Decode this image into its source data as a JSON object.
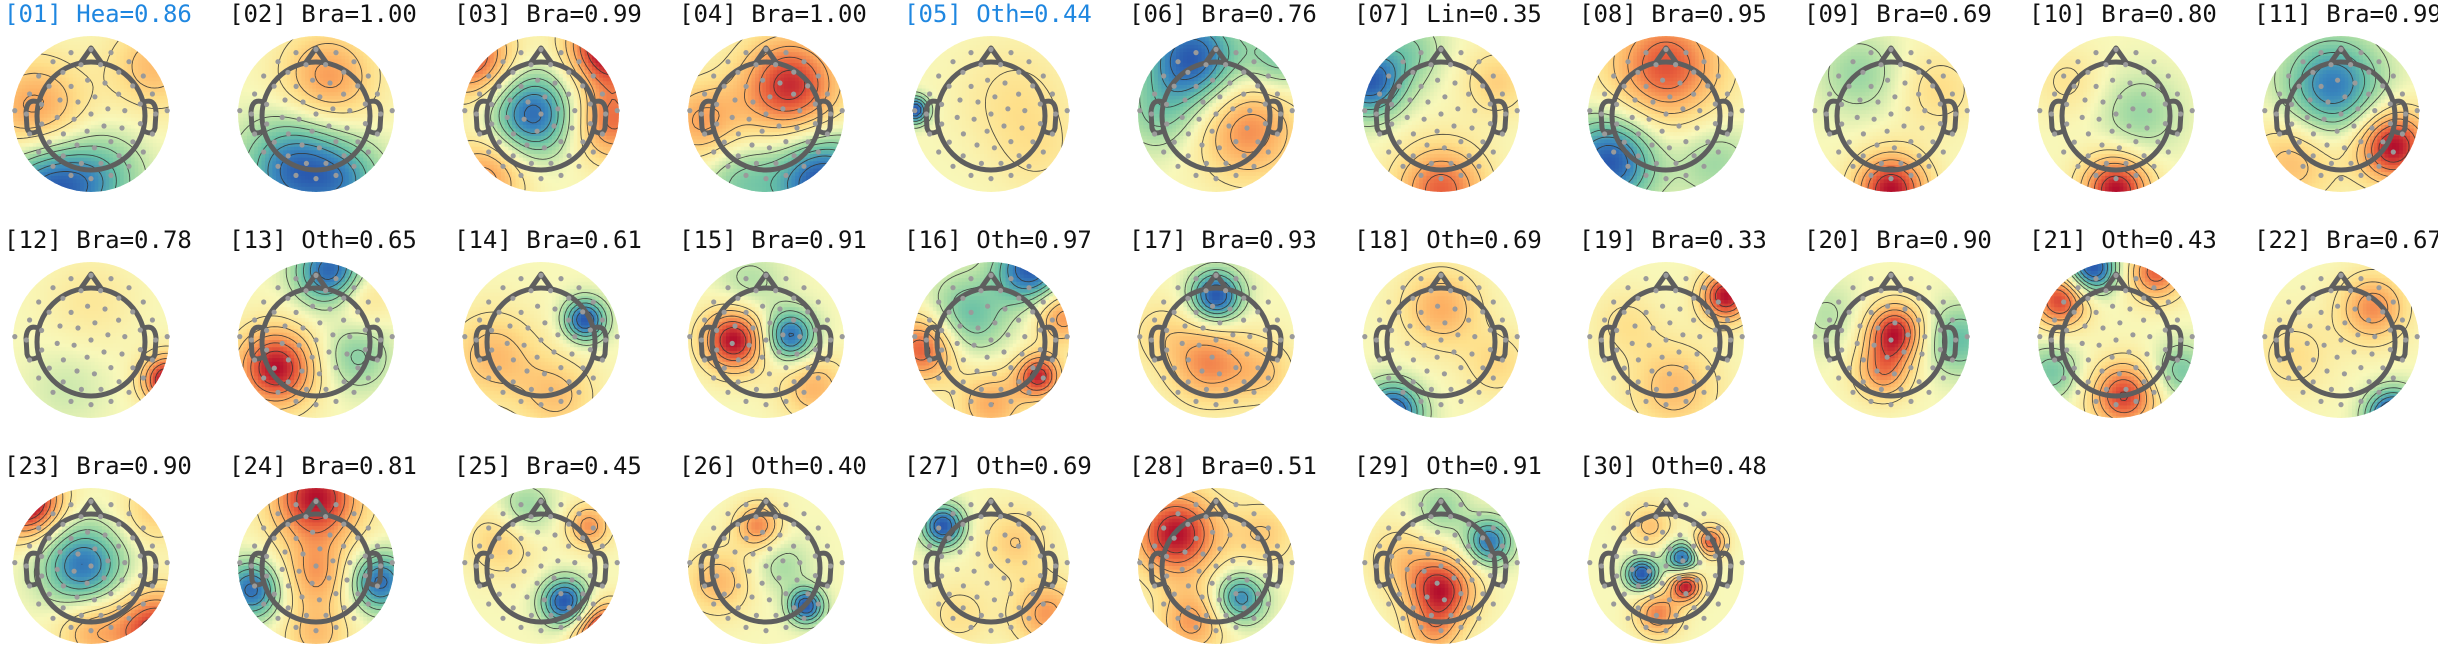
{
  "colors": {
    "normal": "#111111",
    "flagged": "#1f87e0",
    "head": "#5e5e5e",
    "sensor": "#9a9a9a",
    "contour": "#333333"
  },
  "components": [
    {
      "label": "[01] Hea=0.86",
      "flagged": true,
      "blobs": [
        [
          -0.7,
          0.05,
          0.6,
          0.45
        ],
        [
          0.8,
          0.6,
          0.45,
          0.4
        ],
        [
          -0.55,
          -0.95,
          -0.95,
          0.42
        ],
        [
          0.1,
          -0.8,
          -0.5,
          0.4
        ]
      ]
    },
    {
      "label": "[02] Bra=1.00",
      "flagged": false,
      "blobs": [
        [
          0.15,
          0.45,
          0.6,
          0.42
        ],
        [
          -0.25,
          -0.7,
          -0.95,
          0.45
        ],
        [
          0.4,
          -0.85,
          -0.5,
          0.35
        ]
      ]
    },
    {
      "label": "[03] Bra=0.99",
      "flagged": false,
      "blobs": [
        [
          -0.1,
          0.0,
          -0.8,
          0.35
        ],
        [
          0.85,
          0.85,
          1.0,
          0.35
        ],
        [
          -0.85,
          0.7,
          0.7,
          0.35
        ],
        [
          0.9,
          -0.1,
          0.6,
          0.35
        ],
        [
          -0.7,
          -0.8,
          0.5,
          0.35
        ]
      ]
    },
    {
      "label": "[04] Bra=1.00",
      "flagged": false,
      "blobs": [
        [
          0.3,
          0.35,
          0.7,
          0.45
        ],
        [
          -0.8,
          -0.1,
          0.4,
          0.35
        ],
        [
          0.7,
          -0.85,
          -0.8,
          0.4
        ],
        [
          -0.3,
          -0.85,
          -0.3,
          0.35
        ]
      ]
    },
    {
      "label": "[05] Oth=0.44",
      "flagged": true,
      "blobs": [
        [
          -0.95,
          0.05,
          -1.0,
          0.12
        ],
        [
          0.3,
          0.2,
          0.2,
          0.5
        ],
        [
          0.6,
          -0.5,
          0.15,
          0.4
        ]
      ]
    },
    {
      "label": "[06] Bra=0.76",
      "flagged": false,
      "blobs": [
        [
          -0.3,
          0.7,
          -0.9,
          0.4
        ],
        [
          0.4,
          -0.2,
          0.55,
          0.45
        ],
        [
          -0.7,
          0.0,
          -0.3,
          0.35
        ],
        [
          0.8,
          0.7,
          -0.4,
          0.3
        ]
      ]
    },
    {
      "label": "[07] Lin=0.35",
      "flagged": false,
      "blobs": [
        [
          -0.9,
          0.4,
          -0.9,
          0.3
        ],
        [
          0.0,
          -0.95,
          0.7,
          0.4
        ],
        [
          -0.4,
          0.8,
          -0.3,
          0.3
        ],
        [
          0.7,
          0.4,
          0.3,
          0.3
        ]
      ]
    },
    {
      "label": "[08] Bra=0.95",
      "flagged": false,
      "blobs": [
        [
          0.0,
          0.6,
          0.55,
          0.5
        ],
        [
          -0.7,
          -0.6,
          -0.7,
          0.38
        ],
        [
          0.6,
          -0.6,
          -0.2,
          0.35
        ]
      ]
    },
    {
      "label": "[09] Bra=0.69",
      "flagged": false,
      "blobs": [
        [
          0.0,
          -0.95,
          1.0,
          0.32
        ],
        [
          -0.4,
          0.5,
          -0.3,
          0.35
        ],
        [
          0.6,
          0.3,
          0.25,
          0.35
        ]
      ]
    },
    {
      "label": "[10] Bra=0.80",
      "flagged": false,
      "blobs": [
        [
          0.0,
          -0.95,
          1.0,
          0.3
        ],
        [
          0.3,
          0.0,
          -0.3,
          0.35
        ],
        [
          -0.6,
          0.4,
          0.2,
          0.3
        ]
      ]
    },
    {
      "label": "[11] Bra=0.99",
      "flagged": false,
      "blobs": [
        [
          -0.1,
          0.35,
          -0.8,
          0.42
        ],
        [
          0.65,
          -0.4,
          1.0,
          0.32
        ],
        [
          -0.6,
          -0.6,
          0.4,
          0.4
        ]
      ]
    },
    {
      "label": "[12] Bra=0.78",
      "flagged": false,
      "blobs": [
        [
          0.95,
          -0.5,
          0.95,
          0.22
        ],
        [
          0.0,
          0.5,
          0.15,
          0.4
        ],
        [
          -0.3,
          -0.6,
          -0.12,
          0.35
        ]
      ]
    },
    {
      "label": "[13] Oth=0.65",
      "flagged": false,
      "blobs": [
        [
          -0.5,
          -0.35,
          0.8,
          0.35
        ],
        [
          0.2,
          0.85,
          -0.85,
          0.3
        ],
        [
          0.5,
          -0.2,
          -0.3,
          0.3
        ],
        [
          0.5,
          0.6,
          0.3,
          0.3
        ]
      ]
    },
    {
      "label": "[14] Bra=0.61",
      "flagged": false,
      "blobs": [
        [
          0.55,
          0.25,
          -0.95,
          0.18
        ],
        [
          -0.6,
          -0.2,
          0.4,
          0.4
        ],
        [
          0.2,
          -0.7,
          0.35,
          0.35
        ]
      ]
    },
    {
      "label": "[15] Bra=0.91",
      "flagged": false,
      "blobs": [
        [
          -0.4,
          0.0,
          0.9,
          0.28
        ],
        [
          0.3,
          0.05,
          -0.8,
          0.22
        ],
        [
          0.6,
          -0.6,
          0.4,
          0.3
        ],
        [
          -0.2,
          0.7,
          -0.2,
          0.3
        ]
      ]
    },
    {
      "label": "[16] Oth=0.97",
      "flagged": false,
      "blobs": [
        [
          0.5,
          0.9,
          -1.0,
          0.3
        ],
        [
          -0.3,
          0.3,
          -0.5,
          0.35
        ],
        [
          0.6,
          -0.45,
          0.9,
          0.2
        ],
        [
          -0.85,
          -0.1,
          0.8,
          0.3
        ],
        [
          0.0,
          -0.8,
          0.5,
          0.3
        ],
        [
          0.9,
          0.3,
          0.6,
          0.25
        ]
      ]
    },
    {
      "label": "[17] Bra=0.93",
      "flagged": false,
      "blobs": [
        [
          0.0,
          0.55,
          -0.95,
          0.22
        ],
        [
          -0.1,
          -0.3,
          0.55,
          0.35
        ],
        [
          0.6,
          -0.4,
          0.3,
          0.3
        ],
        [
          -0.7,
          0.1,
          0.2,
          0.3
        ]
      ]
    },
    {
      "label": "[18] Oth=0.69",
      "flagged": false,
      "blobs": [
        [
          -0.6,
          -0.9,
          -0.95,
          0.25
        ],
        [
          0.0,
          0.4,
          0.45,
          0.35
        ],
        [
          0.7,
          -0.3,
          0.25,
          0.3
        ]
      ]
    },
    {
      "label": "[19] Bra=0.33",
      "flagged": false,
      "blobs": [
        [
          0.75,
          0.55,
          0.95,
          0.22
        ],
        [
          0.1,
          -0.6,
          0.4,
          0.4
        ],
        [
          -0.5,
          0.2,
          0.2,
          0.3
        ]
      ]
    },
    {
      "label": "[20] Bra=0.90",
      "flagged": false,
      "blobs": [
        [
          0.05,
          0.1,
          0.95,
          0.25
        ],
        [
          -0.1,
          -0.4,
          0.6,
          0.25
        ],
        [
          0.85,
          0.0,
          -0.5,
          0.3
        ],
        [
          -0.8,
          0.3,
          -0.2,
          0.3
        ]
      ]
    },
    {
      "label": "[21] Oth=0.43",
      "flagged": false,
      "blobs": [
        [
          -0.3,
          0.9,
          -1.0,
          0.22
        ],
        [
          0.1,
          -0.7,
          0.8,
          0.3
        ],
        [
          -0.7,
          0.5,
          0.8,
          0.25
        ],
        [
          0.5,
          0.85,
          0.7,
          0.25
        ],
        [
          -0.8,
          -0.4,
          -0.4,
          0.25
        ],
        [
          0.8,
          -0.4,
          -0.4,
          0.25
        ]
      ]
    },
    {
      "label": "[22] Bra=0.67",
      "flagged": false,
      "blobs": [
        [
          0.65,
          -0.95,
          -1.0,
          0.22
        ],
        [
          0.4,
          0.4,
          0.5,
          0.3
        ],
        [
          -0.6,
          -0.2,
          0.2,
          0.35
        ]
      ]
    },
    {
      "label": "[23] Bra=0.90",
      "flagged": false,
      "blobs": [
        [
          -0.1,
          0.0,
          -0.75,
          0.35
        ],
        [
          -0.8,
          0.8,
          1.0,
          0.3
        ],
        [
          0.8,
          -0.8,
          0.8,
          0.35
        ],
        [
          0.0,
          -0.8,
          0.4,
          0.3
        ],
        [
          0.8,
          0.7,
          0.3,
          0.3
        ]
      ]
    },
    {
      "label": "[24] Bra=0.81",
      "flagged": false,
      "blobs": [
        [
          0.0,
          0.85,
          1.0,
          0.4
        ],
        [
          -0.8,
          -0.3,
          -0.9,
          0.25
        ],
        [
          0.8,
          -0.2,
          -0.9,
          0.25
        ],
        [
          0.0,
          -0.1,
          0.5,
          0.3
        ],
        [
          0.0,
          -0.85,
          0.4,
          0.3
        ]
      ]
    },
    {
      "label": "[25] Bra=0.45",
      "flagged": false,
      "blobs": [
        [
          0.3,
          -0.45,
          -0.9,
          0.2
        ],
        [
          0.6,
          0.5,
          0.5,
          0.2
        ],
        [
          0.8,
          -0.85,
          1.0,
          0.25
        ],
        [
          -0.5,
          0.3,
          0.3,
          0.3
        ],
        [
          -0.2,
          0.7,
          -0.3,
          0.25
        ]
      ]
    },
    {
      "label": "[26] Oth=0.40",
      "flagged": false,
      "blobs": [
        [
          0.5,
          -0.5,
          -0.8,
          0.15
        ],
        [
          -0.1,
          0.5,
          0.5,
          0.2
        ],
        [
          -0.6,
          -0.2,
          0.35,
          0.3
        ],
        [
          0.2,
          0.0,
          -0.2,
          0.25
        ]
      ]
    },
    {
      "label": "[27] Oth=0.69",
      "flagged": false,
      "blobs": [
        [
          -0.6,
          0.5,
          -0.9,
          0.18
        ],
        [
          0.3,
          0.3,
          0.3,
          0.3
        ],
        [
          0.7,
          -0.6,
          0.5,
          0.3
        ],
        [
          -0.4,
          -0.6,
          0.2,
          0.3
        ]
      ]
    },
    {
      "label": "[28] Bra=0.51",
      "flagged": false,
      "blobs": [
        [
          -0.5,
          0.4,
          0.9,
          0.38
        ],
        [
          0.3,
          -0.4,
          -0.7,
          0.22
        ],
        [
          0.6,
          0.4,
          0.3,
          0.3
        ],
        [
          -0.3,
          -0.7,
          0.5,
          0.3
        ]
      ]
    },
    {
      "label": "[29] Oth=0.91",
      "flagged": false,
      "blobs": [
        [
          0.0,
          -0.3,
          0.9,
          0.3
        ],
        [
          0.6,
          0.3,
          -0.8,
          0.2
        ],
        [
          -0.5,
          0.1,
          0.3,
          0.3
        ],
        [
          0.0,
          0.7,
          -0.3,
          0.25
        ],
        [
          -0.1,
          -0.85,
          0.4,
          0.25
        ]
      ]
    },
    {
      "label": "[30] Oth=0.48",
      "flagged": false,
      "blobs": [
        [
          -0.3,
          -0.1,
          -0.8,
          0.14
        ],
        [
          0.25,
          -0.25,
          0.75,
          0.14
        ],
        [
          0.2,
          0.1,
          -0.7,
          0.14
        ],
        [
          0.55,
          0.3,
          0.6,
          0.14
        ],
        [
          -0.2,
          0.5,
          0.3,
          0.2
        ],
        [
          -0.1,
          -0.6,
          0.5,
          0.2
        ]
      ]
    }
  ]
}
